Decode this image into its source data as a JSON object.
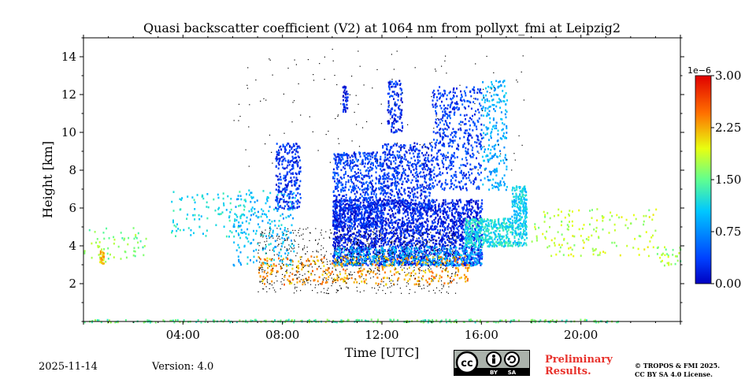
{
  "chart_data": {
    "type": "heatmap",
    "title": "Quasi backscatter coefficient (V2) at 1064 nm from pollyxt_fmi at Leipzig2",
    "xlabel": "Time [UTC]",
    "ylabel": "Height [km]",
    "xlim_hours": [
      0,
      24
    ],
    "ylim_km": [
      0,
      15
    ],
    "x_ticks": [
      {
        "hour": 4,
        "label": "04:00"
      },
      {
        "hour": 8,
        "label": "08:00"
      },
      {
        "hour": 12,
        "label": "12:00"
      },
      {
        "hour": 16,
        "label": "16:00"
      },
      {
        "hour": 20,
        "label": "20:00"
      }
    ],
    "y_ticks": [
      {
        "value": 2,
        "label": "2"
      },
      {
        "value": 4,
        "label": "4"
      },
      {
        "value": 6,
        "label": "6"
      },
      {
        "value": 8,
        "label": "8"
      },
      {
        "value": 10,
        "label": "10"
      },
      {
        "value": 12,
        "label": "12"
      },
      {
        "value": 14,
        "label": "14"
      }
    ],
    "colorbar": {
      "min": 0,
      "max": 3.0,
      "scale_label": "1e−6",
      "ticks": [
        {
          "value": 0,
          "label": "0.00"
        },
        {
          "value": 0.75,
          "label": "0.75"
        },
        {
          "value": 1.5,
          "label": "1.50"
        },
        {
          "value": 2.25,
          "label": "2.25"
        },
        {
          "value": 3.0,
          "label": "3.00"
        }
      ]
    },
    "regions": [
      {
        "name": "early-aerosol-layer",
        "t": [
          0,
          2.5
        ],
        "h": [
          3.2,
          5.0
        ],
        "v": 1.6,
        "n": 60
      },
      {
        "name": "night-cloud-patch",
        "t": [
          0.6,
          0.8
        ],
        "h": [
          3.1,
          3.8
        ],
        "v": 2.2,
        "n": 30
      },
      {
        "name": "aerosol-5-6km",
        "t": [
          3.5,
          6.5
        ],
        "h": [
          4.5,
          7.0
        ],
        "v": 1.2,
        "n": 100
      },
      {
        "name": "morning-scatter",
        "t": [
          6.0,
          8.5
        ],
        "h": [
          3.0,
          7.0
        ],
        "v": 1.0,
        "n": 220
      },
      {
        "name": "cirrus-8am",
        "t": [
          7.7,
          8.7
        ],
        "h": [
          6.0,
          9.5
        ],
        "v": 0.3,
        "n": 260
      },
      {
        "name": "cirrus-10-12",
        "t": [
          10.0,
          12.0
        ],
        "h": [
          5.0,
          9.0
        ],
        "v": 0.35,
        "n": 650
      },
      {
        "name": "cirrus-12-14",
        "t": [
          12.0,
          14.0
        ],
        "h": [
          6.0,
          9.5
        ],
        "v": 0.3,
        "n": 520
      },
      {
        "name": "cirrus-10-5",
        "t": [
          10.4,
          10.6
        ],
        "h": [
          11.0,
          12.5
        ],
        "v": 0.2,
        "n": 40
      },
      {
        "name": "tall-cirrus-12-5",
        "t": [
          12.2,
          12.8
        ],
        "h": [
          10.0,
          12.8
        ],
        "v": 0.25,
        "n": 120
      },
      {
        "name": "cirrus-14-16",
        "t": [
          14.0,
          16.0
        ],
        "h": [
          7.0,
          12.5
        ],
        "v": 0.35,
        "n": 480
      },
      {
        "name": "cirrus-16-17",
        "t": [
          16.0,
          17.0
        ],
        "h": [
          7.0,
          12.8
        ],
        "v": 0.9,
        "n": 220
      },
      {
        "name": "boundary-layer-main",
        "t": [
          10.0,
          16.0
        ],
        "h": [
          3.0,
          6.5
        ],
        "v": 0.2,
        "n": 2300
      },
      {
        "name": "pbl-top-edge",
        "t": [
          10.0,
          16.0
        ],
        "h": [
          3.0,
          4.0
        ],
        "v": 0.9,
        "n": 420
      },
      {
        "name": "dense-aerosol-15-17",
        "t": [
          15.3,
          17.2
        ],
        "h": [
          4.0,
          5.5
        ],
        "v": 1.2,
        "n": 420
      },
      {
        "name": "cloud-17-5",
        "t": [
          17.2,
          17.8
        ],
        "h": [
          4.0,
          7.2
        ],
        "v": 1.1,
        "n": 260
      },
      {
        "name": "lower-orange",
        "t": [
          7.0,
          15.5
        ],
        "h": [
          2.0,
          3.5
        ],
        "v": 2.3,
        "n": 380
      },
      {
        "name": "noise-black",
        "t": [
          7.0,
          15.0
        ],
        "h": [
          1.5,
          5.0
        ],
        "v": -1,
        "n": 700
      },
      {
        "name": "evening-aerosol",
        "t": [
          18.0,
          23.0
        ],
        "h": [
          3.5,
          6.0
        ],
        "v": 1.8,
        "n": 150
      },
      {
        "name": "late-layer",
        "t": [
          23.0,
          24.0
        ],
        "h": [
          3.0,
          4.0
        ],
        "v": 1.7,
        "n": 30
      },
      {
        "name": "sparse-high-noise",
        "t": [
          6.0,
          18.0
        ],
        "h": [
          8.0,
          14.5
        ],
        "v": -1,
        "n": 140
      },
      {
        "name": "ground-line",
        "t": [
          0,
          21.5
        ],
        "h": [
          0.0,
          0.15
        ],
        "v": 1.5,
        "n": 260
      }
    ]
  },
  "footer": {
    "date": "2025-11-14",
    "version": "Version: 4.0",
    "preliminary": [
      "Preliminary",
      "Results."
    ],
    "copyright": [
      "© TROPOS & FMI 2025.",
      "CC BY SA 4.0 License."
    ],
    "license_badge": [
      "BY",
      "SA"
    ]
  }
}
